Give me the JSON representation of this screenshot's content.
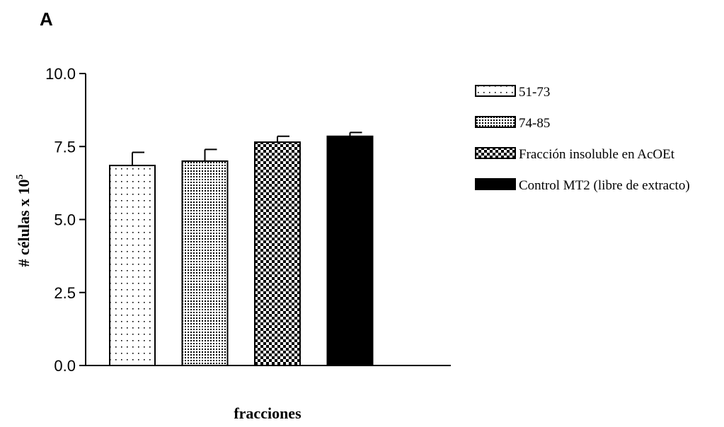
{
  "panel_label": "A",
  "chart_data": {
    "type": "bar",
    "title": "",
    "xlabel": "fracciones",
    "ylabel": "# células x 10",
    "ylabel_superscript": "5",
    "ylim": [
      0.0,
      10.0
    ],
    "yticks": [
      "0.0",
      "2.5",
      "5.0",
      "7.5",
      "10.0"
    ],
    "grid": false,
    "legend_position": "right",
    "series": [
      {
        "name": "51-73",
        "value": 6.85,
        "error": 0.45,
        "pattern": "sparse-dots",
        "color": "#000000"
      },
      {
        "name": "74-85",
        "value": 7.0,
        "error": 0.4,
        "pattern": "dense-dots",
        "color": "#000000"
      },
      {
        "name": "Fracción insoluble en AcOEt",
        "value": 7.65,
        "error": 0.2,
        "pattern": "checker",
        "color": "#000000"
      },
      {
        "name": "Control MT2 (libre de extracto)",
        "value": 7.85,
        "error": 0.13,
        "pattern": "solid",
        "color": "#000000"
      }
    ]
  }
}
